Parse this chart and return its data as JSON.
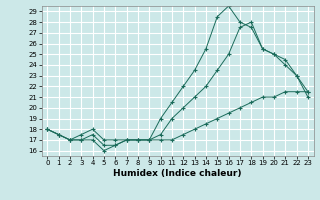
{
  "title": "",
  "xlabel": "Humidex (Indice chaleur)",
  "ylabel": "",
  "bg_color": "#cce8e8",
  "grid_color": "#ffffff",
  "line_color": "#1a6b5a",
  "xlim": [
    -0.5,
    23.5
  ],
  "ylim": [
    15.5,
    29.5
  ],
  "xticks": [
    0,
    1,
    2,
    3,
    4,
    5,
    6,
    7,
    8,
    9,
    10,
    11,
    12,
    13,
    14,
    15,
    16,
    17,
    18,
    19,
    20,
    21,
    22,
    23
  ],
  "yticks": [
    16,
    17,
    18,
    19,
    20,
    21,
    22,
    23,
    24,
    25,
    26,
    27,
    28,
    29
  ],
  "line1_x": [
    0,
    1,
    2,
    3,
    4,
    5,
    6,
    7,
    8,
    9,
    10,
    11,
    12,
    13,
    14,
    15,
    16,
    17,
    18,
    19,
    20,
    21,
    22,
    23
  ],
  "line1_y": [
    18,
    17.5,
    17,
    17,
    17,
    16,
    16.5,
    17,
    17,
    17,
    17,
    17,
    17.5,
    18,
    18.5,
    19,
    19.5,
    20,
    20.5,
    21,
    21,
    21.5,
    21.5,
    21.5
  ],
  "line2_x": [
    0,
    1,
    2,
    3,
    4,
    5,
    6,
    7,
    8,
    9,
    10,
    11,
    12,
    13,
    14,
    15,
    16,
    17,
    18,
    19,
    20,
    21,
    22,
    23
  ],
  "line2_y": [
    18,
    17.5,
    17,
    17.5,
    18,
    17,
    17,
    17,
    17,
    17,
    19,
    20.5,
    22,
    23.5,
    25.5,
    28.5,
    29.5,
    28,
    27.5,
    25.5,
    25,
    24.5,
    23,
    21.5
  ],
  "line3_x": [
    0,
    1,
    2,
    3,
    4,
    5,
    6,
    7,
    8,
    9,
    10,
    11,
    12,
    13,
    14,
    15,
    16,
    17,
    18,
    19,
    20,
    21,
    22,
    23
  ],
  "line3_y": [
    18,
    17.5,
    17,
    17,
    17.5,
    16.5,
    16.5,
    17,
    17,
    17,
    17.5,
    19,
    20,
    21,
    22,
    23.5,
    25,
    27.5,
    28,
    25.5,
    25,
    24,
    23,
    21
  ]
}
